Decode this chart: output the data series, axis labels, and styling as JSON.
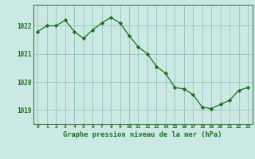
{
  "x": [
    0,
    1,
    2,
    3,
    4,
    5,
    6,
    7,
    8,
    9,
    10,
    11,
    12,
    13,
    14,
    15,
    16,
    17,
    18,
    19,
    20,
    21,
    22,
    23
  ],
  "y": [
    1021.8,
    1022.0,
    1022.0,
    1022.2,
    1021.8,
    1021.55,
    1021.85,
    1022.1,
    1022.3,
    1022.1,
    1021.65,
    1021.25,
    1021.0,
    1020.55,
    1020.3,
    1019.8,
    1019.75,
    1019.55,
    1019.1,
    1019.05,
    1019.2,
    1019.35,
    1019.7,
    1019.8
  ],
  "line_color": "#1a6e1a",
  "marker_color": "#1a6e1a",
  "bg_color": "#cce8e4",
  "grid_color": "#8bbdb8",
  "axis_label_color": "#1a6e1a",
  "tick_label_color": "#1a6e1a",
  "xlabel": "Graphe pression niveau de la mer (hPa)",
  "ylim_min": 1018.5,
  "ylim_max": 1022.75,
  "yticks": [
    1019,
    1020,
    1021,
    1022
  ],
  "xticks": [
    0,
    1,
    2,
    3,
    4,
    5,
    6,
    7,
    8,
    9,
    10,
    11,
    12,
    13,
    14,
    15,
    16,
    17,
    18,
    19,
    20,
    21,
    22,
    23
  ],
  "spine_color": "#4a7a4a"
}
